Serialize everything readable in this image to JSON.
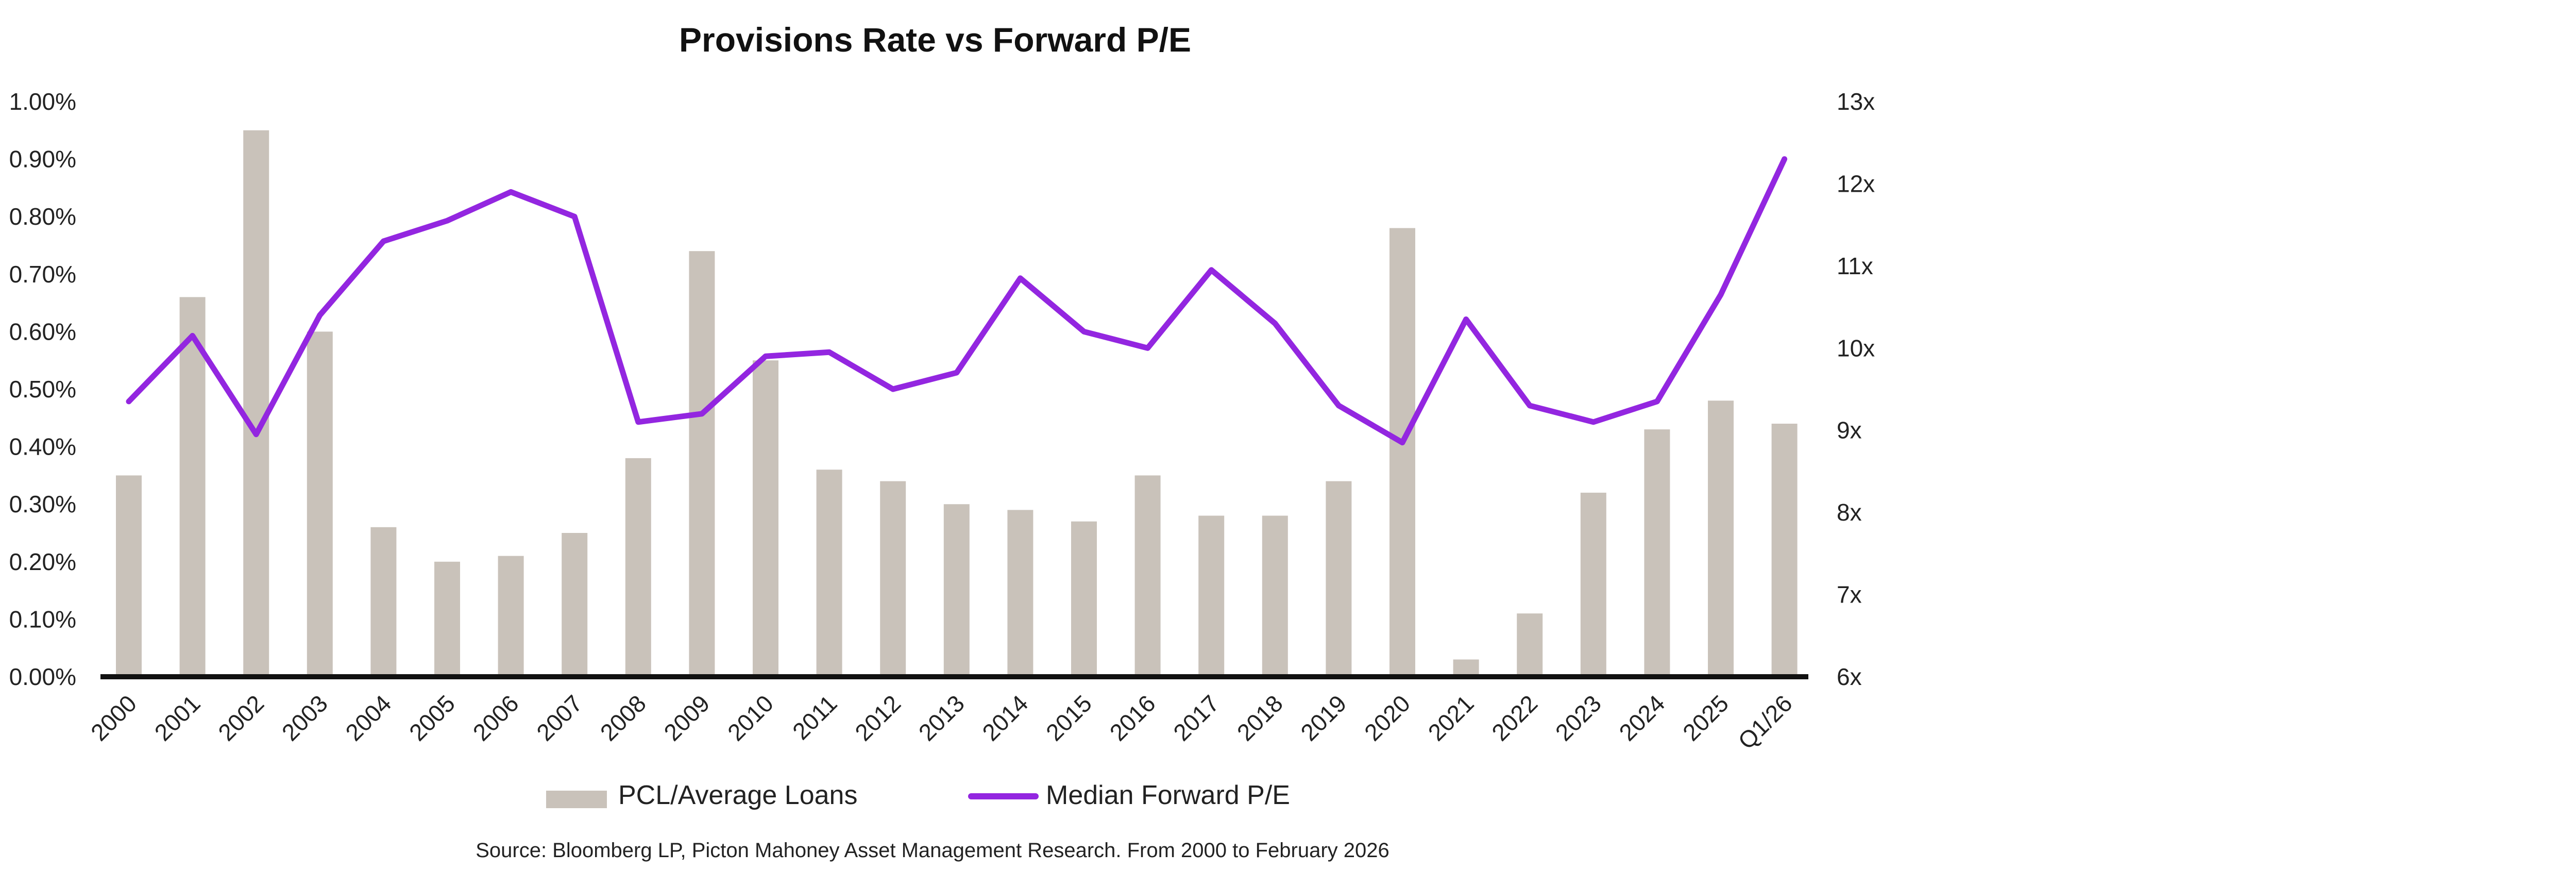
{
  "chart_data": {
    "type": "bar",
    "title": "Provisions Rate vs Forward P/E",
    "categories": [
      "2000",
      "2001",
      "2002",
      "2003",
      "2004",
      "2005",
      "2006",
      "2007",
      "2008",
      "2009",
      "2010",
      "2011",
      "2012",
      "2013",
      "2014",
      "2015",
      "2016",
      "2017",
      "2018",
      "2019",
      "2020",
      "2021",
      "2022",
      "2023",
      "2024",
      "2025",
      "Q1/26"
    ],
    "y_left": {
      "ylim": [
        0,
        1.0
      ],
      "ticks": [
        "0.00%",
        "0.10%",
        "0.20%",
        "0.30%",
        "0.40%",
        "0.50%",
        "0.60%",
        "0.70%",
        "0.80%",
        "0.90%",
        "1.00%"
      ]
    },
    "y_right": {
      "ylim": [
        6,
        13
      ],
      "ticks": [
        "6x",
        "7x",
        "8x",
        "9x",
        "10x",
        "11x",
        "12x",
        "13x"
      ]
    },
    "series": [
      {
        "name": "PCL/Average Loans",
        "type": "bar",
        "axis": "left",
        "color": "#c9c2ba",
        "values": [
          0.35,
          0.66,
          0.95,
          0.6,
          0.26,
          0.2,
          0.21,
          0.25,
          0.38,
          0.74,
          0.55,
          0.36,
          0.34,
          0.3,
          0.29,
          0.27,
          0.35,
          0.28,
          0.28,
          0.34,
          0.78,
          0.03,
          0.11,
          0.32,
          0.43,
          0.48,
          0.44
        ]
      },
      {
        "name": "Median Forward P/E",
        "type": "line",
        "axis": "right",
        "color": "#9326e0",
        "values": [
          9.35,
          10.15,
          8.95,
          10.4,
          11.3,
          11.55,
          11.9,
          11.6,
          9.1,
          9.2,
          9.9,
          9.95,
          9.5,
          9.7,
          10.85,
          10.2,
          10.0,
          10.95,
          10.3,
          9.3,
          8.85,
          10.35,
          9.3,
          9.1,
          9.35,
          10.65,
          12.3
        ]
      }
    ],
    "legend": "bottom",
    "grid": false
  },
  "source_note": "Source: Bloomberg LP, Picton Mahoney Asset Management Research. From 2000 to February 2026"
}
